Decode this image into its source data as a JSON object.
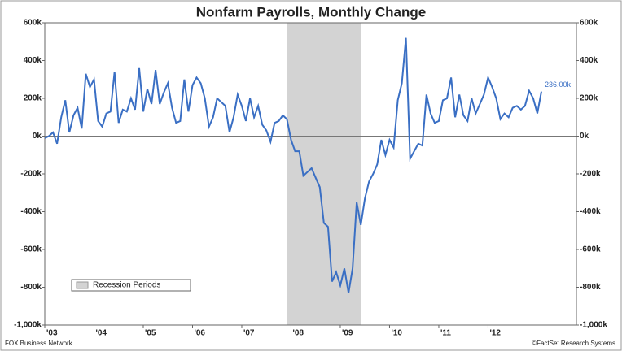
{
  "chart_data": {
    "type": "line",
    "title": "Nonfarm Payrolls, Monthly Change",
    "source_left": "FOX Business Network",
    "source_right": "©FactSet Research Systems",
    "categories": [
      "'03",
      null,
      null,
      null,
      null,
      null,
      null,
      null,
      null,
      null,
      null,
      null,
      "'04",
      null,
      null,
      null,
      null,
      null,
      null,
      null,
      null,
      null,
      null,
      null,
      "'05",
      null,
      null,
      null,
      null,
      null,
      null,
      null,
      null,
      null,
      null,
      null,
      "'06",
      null,
      null,
      null,
      null,
      null,
      null,
      null,
      null,
      null,
      null,
      null,
      "'07",
      null,
      null,
      null,
      null,
      null,
      null,
      null,
      null,
      null,
      null,
      null,
      "'08",
      null,
      null,
      null,
      null,
      null,
      null,
      null,
      null,
      null,
      null,
      null,
      "'09",
      null,
      null,
      null,
      null,
      null,
      null,
      null,
      null,
      null,
      null,
      null,
      "'10",
      null,
      null,
      null,
      null,
      null,
      null,
      null,
      null,
      null,
      null,
      null,
      "'11",
      null,
      null,
      null,
      null,
      null,
      null,
      null,
      null,
      null,
      null,
      null,
      "'12",
      null,
      null,
      null,
      null,
      null,
      null,
      null,
      null,
      null,
      null,
      null,
      null,
      null
    ],
    "series": [
      {
        "name": "Nonfarm Payrolls",
        "color": "#3a6fc4",
        "values": [
          -10,
          0,
          20,
          -40,
          100,
          190,
          20,
          110,
          150,
          40,
          330,
          260,
          300,
          80,
          50,
          120,
          130,
          340,
          70,
          140,
          130,
          200,
          140,
          360,
          130,
          250,
          170,
          350,
          170,
          230,
          280,
          150,
          70,
          80,
          300,
          130,
          270,
          310,
          280,
          200,
          50,
          100,
          200,
          180,
          160,
          20,
          100,
          220,
          160,
          80,
          200,
          100,
          160,
          60,
          30,
          -30,
          70,
          80,
          110,
          90,
          -20,
          -80,
          -80,
          -210,
          -190,
          -170,
          -220,
          -270,
          -460,
          -480,
          -770,
          -720,
          -790,
          -700,
          -830,
          -700,
          -350,
          -470,
          -330,
          -240,
          -200,
          -150,
          -20,
          -100,
          -20,
          -60,
          190,
          280,
          520,
          -120,
          -80,
          -40,
          -50,
          220,
          120,
          70,
          80,
          190,
          200,
          310,
          100,
          220,
          110,
          80,
          200,
          120,
          170,
          220,
          310,
          260,
          200,
          90,
          120,
          100,
          150,
          160,
          140,
          160,
          240,
          200,
          120,
          236
        ],
        "value_labels": [
          null,
          null,
          null,
          null,
          null,
          null,
          null,
          null,
          null,
          null,
          null,
          null,
          null,
          null,
          null,
          null,
          null,
          null,
          null,
          null,
          null,
          null,
          null,
          null,
          null,
          null,
          null,
          null,
          null,
          null,
          null,
          null,
          null,
          null,
          null,
          null,
          null,
          null,
          null,
          null,
          null,
          null,
          null,
          null,
          null,
          null,
          null,
          null,
          null,
          null,
          null,
          null,
          null,
          null,
          null,
          null,
          null,
          null,
          null,
          null,
          null,
          null,
          null,
          null,
          null,
          null,
          null,
          null,
          null,
          null,
          null,
          null,
          null,
          null,
          null,
          null,
          null,
          null,
          null,
          null,
          null,
          null,
          null,
          null,
          null,
          null,
          null,
          null,
          null,
          null,
          null,
          null,
          null,
          null,
          null,
          null,
          null,
          null,
          null,
          null,
          null,
          null,
          null,
          null,
          null,
          null,
          null,
          null,
          null,
          null,
          null,
          null,
          null,
          null,
          null,
          null,
          null,
          null,
          null,
          null,
          null,
          "236.00k"
        ]
      }
    ],
    "recession": {
      "name": "Recession Periods",
      "start": 59,
      "end": 77,
      "color": "#d3d3d3"
    },
    "ylim": [
      -1000,
      600
    ],
    "yticks": [
      {
        "value": -1000,
        "label": "-1,000k"
      },
      {
        "value": -800,
        "label": "-800k"
      },
      {
        "value": -600,
        "label": "-600k"
      },
      {
        "value": -400,
        "label": "-400k"
      },
      {
        "value": -200,
        "label": "-200k"
      },
      {
        "value": 0,
        "label": "0k"
      },
      {
        "value": 200,
        "label": "200k"
      },
      {
        "value": 400,
        "label": "400k"
      },
      {
        "value": 600,
        "label": "600k"
      }
    ],
    "zero_line": true
  }
}
